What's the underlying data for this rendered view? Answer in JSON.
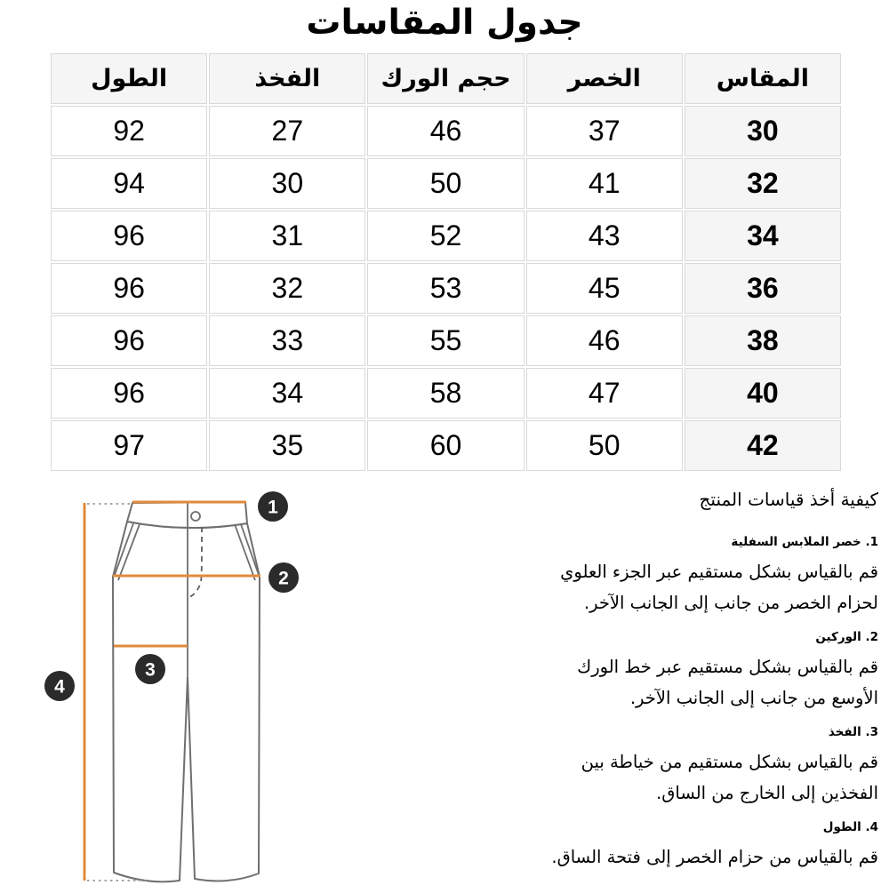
{
  "title": "جدول المقاسات",
  "table": {
    "columns": [
      {
        "key": "size",
        "label": "المقاس"
      },
      {
        "key": "waist",
        "label": "الخصر"
      },
      {
        "key": "hip",
        "label": "حجم الورك"
      },
      {
        "key": "thigh",
        "label": "الفخذ"
      },
      {
        "key": "length",
        "label": "الطول"
      }
    ],
    "rows": [
      [
        "30",
        "37",
        "46",
        "27",
        "92"
      ],
      [
        "32",
        "41",
        "50",
        "30",
        "94"
      ],
      [
        "34",
        "43",
        "52",
        "31",
        "96"
      ],
      [
        "36",
        "45",
        "53",
        "32",
        "96"
      ],
      [
        "38",
        "46",
        "55",
        "33",
        "96"
      ],
      [
        "40",
        "47",
        "58",
        "34",
        "96"
      ],
      [
        "42",
        "50",
        "60",
        "35",
        "97"
      ]
    ]
  },
  "howto": {
    "heading": "كيفية أخذ قياسات المنتج",
    "steps": [
      {
        "label": "1. خصر الملابس السفلية",
        "text": "قم بالقياس بشكل مستقيم عبر الجزء العلوي لحزام الخصر من جانب إلى الجانب الآخر."
      },
      {
        "label": "2. الوركين",
        "text": "قم بالقياس بشكل مستقيم عبر خط الورك الأوسع من جانب إلى الجانب الآخر."
      },
      {
        "label": "3. الفخذ",
        "text": "قم بالقياس بشكل مستقيم من خياطة بين الفخذين إلى الخارج من الساق."
      },
      {
        "label": "4. الطول",
        "text": "قم بالقياس من حزام الخصر إلى فتحة الساق."
      }
    ]
  },
  "diagram": {
    "badges": [
      "1",
      "2",
      "3",
      "4"
    ],
    "colors": {
      "measure_line": "#DF8B3C",
      "badge_bg": "#2b2b2b",
      "badge_text": "#ffffff",
      "garment_outline": "#6f6f6f",
      "dotted_connector": "#a6a6a6"
    }
  }
}
